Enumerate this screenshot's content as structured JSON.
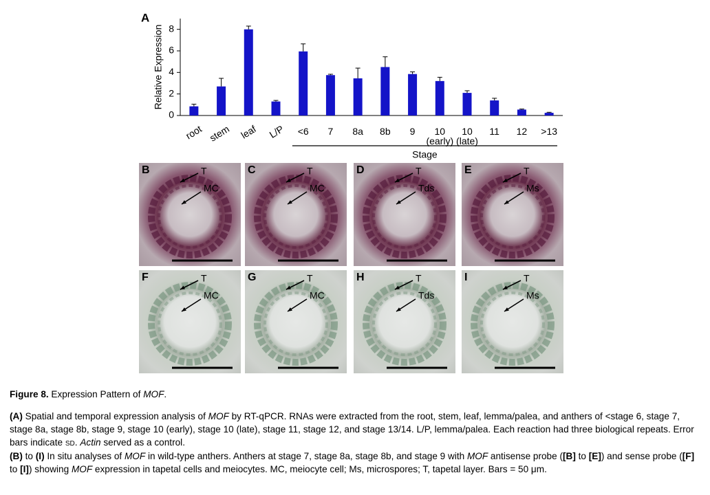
{
  "chart_data": {
    "type": "bar",
    "panel_letter": "A",
    "ylabel": "Relative Expression",
    "categories": [
      "root",
      "stem",
      "leaf",
      "L/P",
      "<6",
      "7",
      "8a",
      "8b",
      "9",
      "10 (early)",
      "10 (late)",
      "11",
      "12",
      ">13"
    ],
    "values": [
      0.85,
      2.7,
      8.0,
      1.3,
      5.95,
      3.75,
      3.45,
      4.5,
      3.85,
      3.2,
      2.1,
      1.4,
      0.55,
      0.25
    ],
    "errors": [
      0.2,
      0.75,
      0.3,
      0.1,
      0.7,
      0.08,
      0.95,
      0.95,
      0.2,
      0.35,
      0.2,
      0.2,
      0.05,
      0.05
    ],
    "color": "#1414c8",
    "error_color": "#000000",
    "ylim": [
      0,
      9
    ],
    "yticks": [
      0,
      2,
      4,
      6,
      8
    ],
    "grid": false,
    "group_label": "Stage"
  },
  "panels": [
    {
      "letter": "B",
      "labels": [
        "T",
        "MC"
      ]
    },
    {
      "letter": "C",
      "labels": [
        "T",
        "MC"
      ]
    },
    {
      "letter": "D",
      "labels": [
        "T",
        "Tds"
      ]
    },
    {
      "letter": "E",
      "labels": [
        "T",
        "Ms"
      ]
    },
    {
      "letter": "F",
      "labels": [
        "T",
        "MC"
      ]
    },
    {
      "letter": "G",
      "labels": [
        "T",
        "MC"
      ]
    },
    {
      "letter": "H",
      "labels": [
        "T",
        "Tds"
      ]
    },
    {
      "letter": "I",
      "labels": [
        "T",
        "Ms"
      ]
    }
  ],
  "caption": {
    "title": [
      "Figure 8.",
      " Expression Pattern of ",
      "MOF",
      "."
    ],
    "para_a": [
      "(A)",
      " Spatial and temporal expression analysis of ",
      "MOF",
      " by RT-qPCR. RNAs were extracted from the root, stem, leaf, lemma/palea, and anthers of <stage 6, stage 7, stage 8a, stage 8b, stage 9, stage 10 (early), stage 10 (late), stage 11, stage 12, and stage 13/14. L/P, lemma/palea. Each reaction had three biological repeats. Error bars indicate ",
      "SD",
      ". ",
      "Actin",
      " served as a control."
    ],
    "para_b": [
      "(B)",
      " to ",
      "(I)",
      " In situ analyses of ",
      "MOF",
      " in wild-type anthers. Anthers at stage 7, stage 8a, stage 8b, and stage 9 with ",
      "MOF",
      " antisense probe (",
      "[B]",
      " to ",
      "[E]",
      ") and sense probe (",
      "[F]",
      " to ",
      "[I]",
      ") showing ",
      "MOF",
      " expression in tapetal cells and meiocytes. MC, meiocyte cell; Ms, microspores; T, tapetal layer. Bars = 50 μm."
    ]
  }
}
